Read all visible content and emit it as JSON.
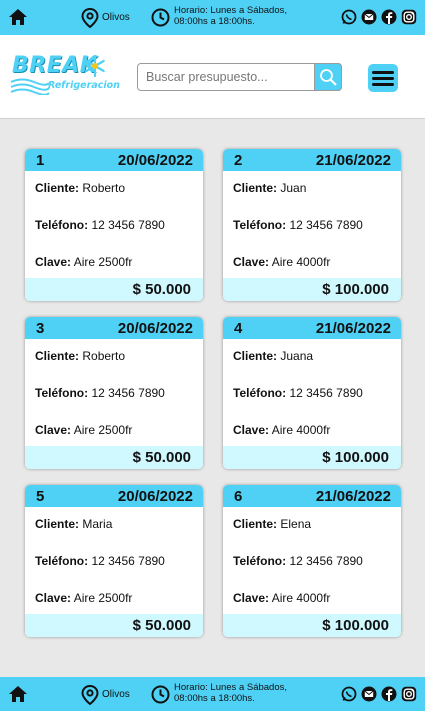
{
  "contact_bar": {
    "location": "Olivos",
    "hours_line1": "Horario: Lunes a Sábados,",
    "hours_line2": "08:00hs a 18:00hs."
  },
  "header": {
    "logo_main": "BREAK",
    "logo_sub": "Refrigeracion",
    "search_placeholder": "Buscar presupuesto..."
  },
  "labels": {
    "client": "Cliente:",
    "phone": "Teléfono:",
    "key": "Clave:"
  },
  "quotes": [
    {
      "number": "1",
      "date": "20/06/2022",
      "client": "Roberto",
      "phone": "12 3456 7890",
      "key": "Aire 2500fr",
      "price": "$ 50.000"
    },
    {
      "number": "2",
      "date": "21/06/2022",
      "client": "Juan",
      "phone": "12 3456 7890",
      "key": "Aire 4000fr",
      "price": "$ 100.000"
    },
    {
      "number": "3",
      "date": "20/06/2022",
      "client": "Roberto",
      "phone": "12 3456 7890",
      "key": "Aire 2500fr",
      "price": "$ 50.000"
    },
    {
      "number": "4",
      "date": "21/06/2022",
      "client": "Juana",
      "phone": "12 3456 7890",
      "key": "Aire 4000fr",
      "price": "$ 100.000"
    },
    {
      "number": "5",
      "date": "20/06/2022",
      "client": "Maria",
      "phone": "12 3456 7890",
      "key": "Aire 2500fr",
      "price": "$ 50.000"
    },
    {
      "number": "6",
      "date": "21/06/2022",
      "client": "Elena",
      "phone": "12 3456 7890",
      "key": "Aire 4000fr",
      "price": "$ 100.000"
    }
  ],
  "colors": {
    "accent": "#4fd1f5",
    "card_footer": "#cff8ff",
    "background": "#e8e8e8"
  },
  "icons": [
    "home-icon",
    "location-icon",
    "clock-icon",
    "whatsapp-icon",
    "email-icon",
    "facebook-icon",
    "instagram-icon",
    "search-icon",
    "hamburger-icon",
    "snowflake-icon"
  ]
}
